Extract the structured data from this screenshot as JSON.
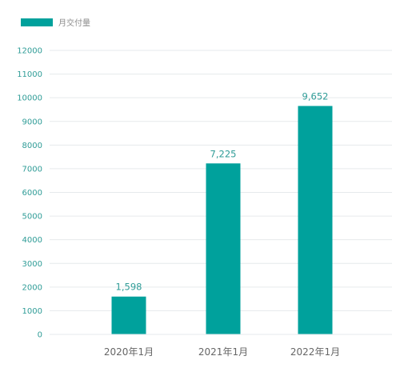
{
  "chart_data": {
    "type": "bar",
    "categories": [
      "2020年1月",
      "2021年1月",
      "2022年1月"
    ],
    "series": [
      {
        "name": "月交付量",
        "values": [
          1598,
          7225,
          9652
        ]
      }
    ],
    "data_labels": [
      "1,598",
      "7,225",
      "9,652"
    ],
    "yticks": [
      "0",
      "1000",
      "2000",
      "3000",
      "4000",
      "5000",
      "6000",
      "7000",
      "8000",
      "9000",
      "10000",
      "11000",
      "12000"
    ],
    "ylim": [
      0,
      12000
    ],
    "grid": true,
    "legend_position": "top-left",
    "colors": {
      "bar": "#00a19c",
      "tick": "#2f9c97",
      "grid": "#e6eaec"
    }
  }
}
